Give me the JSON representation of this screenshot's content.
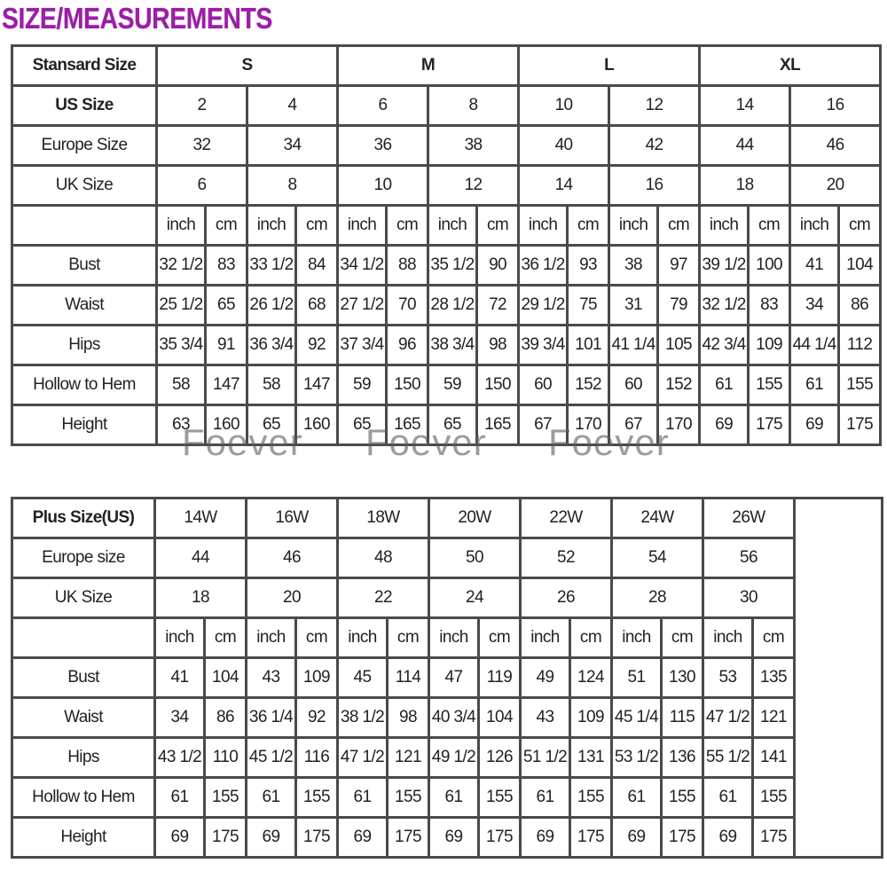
{
  "title": "SIZE/MEASUREMENTS",
  "watermark": "Foever",
  "standard_table": {
    "header_label": "Stansard Size",
    "groups": [
      "S",
      "M",
      "L",
      "XL"
    ],
    "size_rows": [
      {
        "label": "US Size",
        "values": [
          "2",
          "4",
          "6",
          "8",
          "10",
          "12",
          "14",
          "16"
        ]
      },
      {
        "label": "Europe Size",
        "values": [
          "32",
          "34",
          "36",
          "38",
          "40",
          "42",
          "44",
          "46"
        ]
      },
      {
        "label": "UK Size",
        "values": [
          "6",
          "8",
          "10",
          "12",
          "14",
          "16",
          "18",
          "20"
        ]
      }
    ],
    "units": [
      "inch",
      "cm"
    ],
    "measure_rows": [
      {
        "label": "Bust",
        "values": [
          "32 1/2",
          "83",
          "33 1/2",
          "84",
          "34 1/2",
          "88",
          "35 1/2",
          "90",
          "36 1/2",
          "93",
          "38",
          "97",
          "39 1/2",
          "100",
          "41",
          "104"
        ]
      },
      {
        "label": "Waist",
        "values": [
          "25 1/2",
          "65",
          "26 1/2",
          "68",
          "27 1/2",
          "70",
          "28 1/2",
          "72",
          "29 1/2",
          "75",
          "31",
          "79",
          "32 1/2",
          "83",
          "34",
          "86"
        ]
      },
      {
        "label": "Hips",
        "values": [
          "35 3/4",
          "91",
          "36 3/4",
          "92",
          "37 3/4",
          "96",
          "38 3/4",
          "98",
          "39 3/4",
          "101",
          "41 1/4",
          "105",
          "42 3/4",
          "109",
          "44 1/4",
          "112"
        ]
      },
      {
        "label": "Hollow to Hem",
        "values": [
          "58",
          "147",
          "58",
          "147",
          "59",
          "150",
          "59",
          "150",
          "60",
          "152",
          "60",
          "152",
          "61",
          "155",
          "61",
          "155"
        ]
      },
      {
        "label": "Height",
        "values": [
          "63",
          "160",
          "65",
          "160",
          "65",
          "165",
          "65",
          "165",
          "67",
          "170",
          "67",
          "170",
          "69",
          "175",
          "69",
          "175"
        ]
      }
    ]
  },
  "plus_table": {
    "header_label": "Plus Size(US)",
    "sizes": [
      "14W",
      "16W",
      "18W",
      "20W",
      "22W",
      "24W",
      "26W"
    ],
    "size_rows": [
      {
        "label": "Europe size",
        "values": [
          "44",
          "46",
          "48",
          "50",
          "52",
          "54",
          "56"
        ]
      },
      {
        "label": "UK Size",
        "values": [
          "18",
          "20",
          "22",
          "24",
          "26",
          "28",
          "30"
        ]
      }
    ],
    "units": [
      "inch",
      "cm"
    ],
    "measure_rows": [
      {
        "label": "Bust",
        "values": [
          "41",
          "104",
          "43",
          "109",
          "45",
          "114",
          "47",
          "119",
          "49",
          "124",
          "51",
          "130",
          "53",
          "135"
        ]
      },
      {
        "label": "Waist",
        "values": [
          "34",
          "86",
          "36 1/4",
          "92",
          "38 1/2",
          "98",
          "40 3/4",
          "104",
          "43",
          "109",
          "45 1/4",
          "115",
          "47 1/2",
          "121"
        ]
      },
      {
        "label": "Hips",
        "values": [
          "43 1/2",
          "110",
          "45 1/2",
          "116",
          "47 1/2",
          "121",
          "49 1/2",
          "126",
          "51 1/2",
          "131",
          "53 1/2",
          "136",
          "55 1/2",
          "141"
        ]
      },
      {
        "label": "Hollow to Hem",
        "values": [
          "61",
          "155",
          "61",
          "155",
          "61",
          "155",
          "61",
          "155",
          "61",
          "155",
          "61",
          "155",
          "61",
          "155"
        ]
      },
      {
        "label": "Height",
        "values": [
          "69",
          "175",
          "69",
          "175",
          "69",
          "175",
          "69",
          "175",
          "69",
          "175",
          "69",
          "175",
          "69",
          "175"
        ]
      }
    ]
  }
}
